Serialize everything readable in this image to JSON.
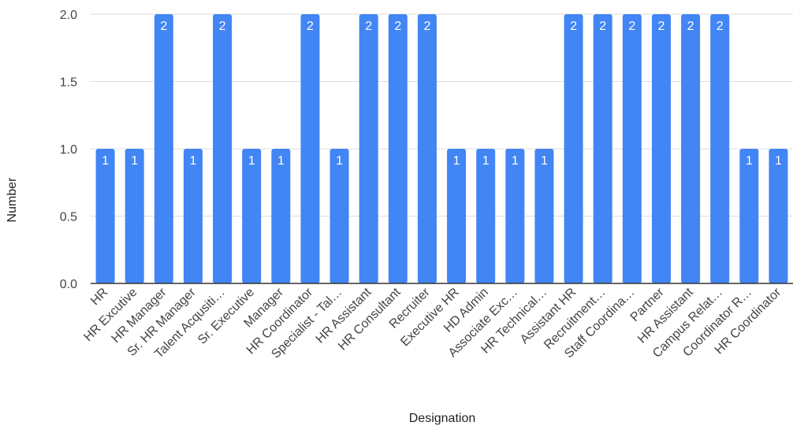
{
  "chart_data": {
    "type": "bar",
    "title": "",
    "xlabel": "Designation",
    "ylabel": "Number",
    "ylim": [
      0,
      2
    ],
    "yticks": [
      "0.0",
      "0.5",
      "1.0",
      "1.5",
      "2.0"
    ],
    "grid": true,
    "legend": "none",
    "color": "#4285f4",
    "categories": [
      "HR",
      "HR Excutive",
      "HR Manager",
      "Sr. HR  Manager",
      "Talent Acqusiti…",
      "Sr. Executive",
      "Manager",
      "HR Coordinator",
      "Specialist - Tal…",
      "HR Assistant",
      "HR Consultant",
      "Recruiter",
      "Executive HR",
      "HD Admin",
      "Associate Exc…",
      "HR Technical…",
      "Assistant HR",
      "Recruitment…",
      "Staff Coordina…",
      "Partner",
      "HR Assistant",
      "Campus Relat…",
      "Coordinator R…",
      "HR Coordinator"
    ],
    "values": [
      1,
      1,
      2,
      1,
      2,
      1,
      1,
      2,
      1,
      2,
      2,
      2,
      1,
      1,
      1,
      1,
      2,
      2,
      2,
      2,
      2,
      2,
      1,
      1
    ],
    "data_labels": [
      "1",
      "1",
      "2",
      "1",
      "2",
      "1",
      "1",
      "2",
      "1",
      "2",
      "2",
      "2",
      "1",
      "1",
      "1",
      "1",
      "2",
      "2",
      "2",
      "2",
      "2",
      "2",
      "1",
      "1"
    ]
  }
}
